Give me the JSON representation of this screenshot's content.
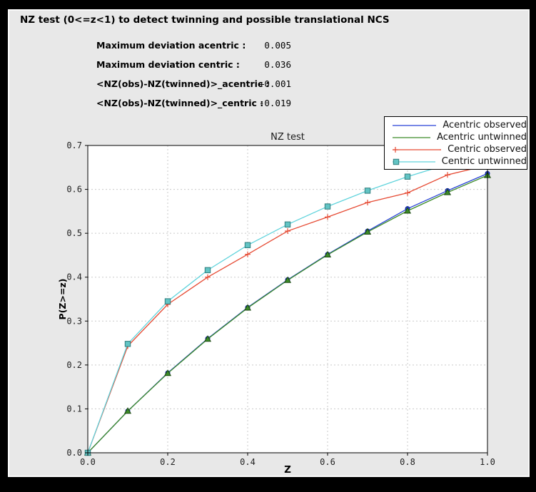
{
  "window": {
    "bg_color": "#000000",
    "panel_bg_color": "#e8e8e8",
    "plot_bg_color": "#ffffff"
  },
  "header": {
    "title": "NZ test (0<=z<1) to detect twinning and possible translational NCS"
  },
  "stats": {
    "rows": [
      {
        "label": "Maximum deviation acentric :",
        "value": "0.005"
      },
      {
        "label": "Maximum deviation centric :",
        "value": "0.036"
      },
      {
        "label": "<NZ(obs)-NZ(twinned)>_acentric :",
        "value": "+0.001"
      },
      {
        "label": "<NZ(obs)-NZ(twinned)>_centric :",
        "value": "-0.019"
      }
    ]
  },
  "chart_data": {
    "type": "line",
    "title": "NZ test",
    "xlabel": "Z",
    "ylabel": "P(Z>=z)",
    "xlim": [
      0.0,
      1.0
    ],
    "ylim": [
      0.0,
      0.7
    ],
    "xticks": [
      "0.0",
      "0.2",
      "0.4",
      "0.6",
      "0.8",
      "1.0"
    ],
    "yticks": [
      "0.0",
      "0.1",
      "0.2",
      "0.3",
      "0.4",
      "0.5",
      "0.6",
      "0.7"
    ],
    "grid": true,
    "grid_color": "#c9c9c9",
    "legend_position": "upper right",
    "x": [
      0.0,
      0.1,
      0.2,
      0.3,
      0.4,
      0.5,
      0.6,
      0.7,
      0.8,
      0.9,
      1.0
    ],
    "series": [
      {
        "name": "Acentric observed",
        "color": "#2741d6",
        "marker": "dot",
        "marker_fill": "#2741d6",
        "marker_edge": "#0b1f9a",
        "values": [
          0.0,
          0.095,
          0.182,
          0.26,
          0.331,
          0.394,
          0.452,
          0.505,
          0.556,
          0.597,
          0.636
        ]
      },
      {
        "name": "Acentric untwinned",
        "color": "#3c8b28",
        "marker": "triangle",
        "marker_fill": "#3c8b28",
        "marker_edge": "#1c4a12",
        "values": [
          0.0,
          0.095,
          0.181,
          0.259,
          0.33,
          0.393,
          0.451,
          0.503,
          0.551,
          0.593,
          0.632
        ]
      },
      {
        "name": "Centric observed",
        "color": "#e64a33",
        "marker": "plus",
        "marker_fill": "#e64a33",
        "marker_edge": "#e64a33",
        "values": [
          0.0,
          0.243,
          0.338,
          0.4,
          0.452,
          0.505,
          0.537,
          0.57,
          0.592,
          0.633,
          0.655
        ]
      },
      {
        "name": "Centric untwinned",
        "color": "#5fd3dc",
        "marker": "square",
        "marker_fill": "#62c4c4",
        "marker_edge": "#2f7d7d",
        "values": [
          0.0,
          0.248,
          0.345,
          0.416,
          0.473,
          0.52,
          0.561,
          0.597,
          0.629,
          0.657,
          0.683
        ]
      }
    ]
  }
}
